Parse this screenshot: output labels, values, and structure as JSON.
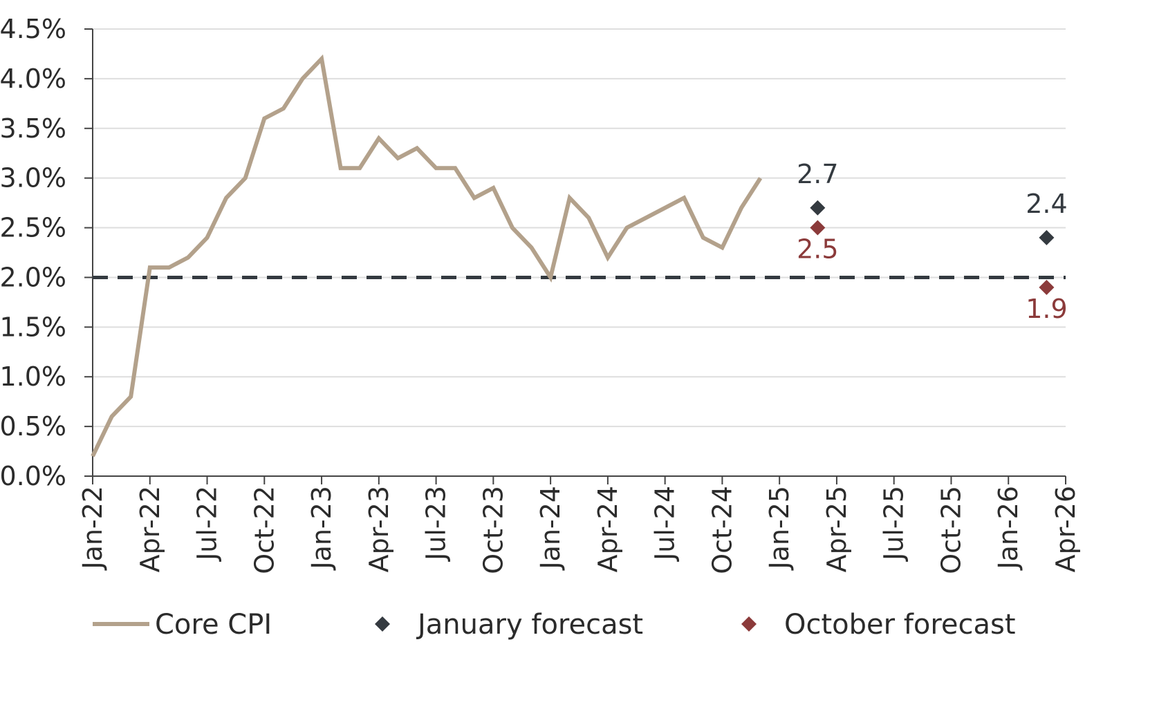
{
  "chart_data": {
    "type": "line",
    "x_axis": {
      "min": "Jan-22",
      "max": "Apr-26",
      "tick_labels": [
        "Jan-22",
        "Apr-22",
        "Jul-22",
        "Oct-22",
        "Jan-23",
        "Apr-23",
        "Jul-23",
        "Oct-23",
        "Jan-24",
        "Apr-24",
        "Jul-24",
        "Oct-24",
        "Jan-25",
        "Apr-25",
        "Jul-25",
        "Oct-25",
        "Jan-26",
        "Apr-26"
      ]
    },
    "y_axis": {
      "min": 0,
      "max": 4.5,
      "step": 0.5,
      "tick_labels": [
        "0.0%",
        "0.5%",
        "1.0%",
        "1.5%",
        "2.0%",
        "2.5%",
        "3.0%",
        "3.5%",
        "4.0%",
        "4.5%"
      ]
    },
    "grid": "horizontal",
    "legend_position": "bottom",
    "series": [
      {
        "name": "Core CPI",
        "kind": "line",
        "color": "#b3a18b",
        "x": [
          "Jan-22",
          "Feb-22",
          "Mar-22",
          "Apr-22",
          "May-22",
          "Jun-22",
          "Jul-22",
          "Aug-22",
          "Sep-22",
          "Oct-22",
          "Nov-22",
          "Dec-22",
          "Jan-23",
          "Feb-23",
          "Mar-23",
          "Apr-23",
          "May-23",
          "Jun-23",
          "Jul-23",
          "Aug-23",
          "Sep-23",
          "Oct-23",
          "Nov-23",
          "Dec-23",
          "Jan-24",
          "Feb-24",
          "Mar-24",
          "Apr-24",
          "May-24",
          "Jun-24",
          "Jul-24",
          "Aug-24",
          "Sep-24",
          "Oct-24",
          "Nov-24",
          "Dec-24"
        ],
        "values": [
          0.2,
          0.6,
          0.8,
          2.1,
          2.1,
          2.2,
          2.4,
          2.8,
          3.0,
          3.6,
          3.7,
          4.0,
          4.2,
          3.1,
          3.1,
          3.4,
          3.2,
          3.3,
          3.1,
          3.1,
          2.8,
          2.9,
          2.5,
          2.3,
          2.0,
          2.8,
          2.6,
          2.2,
          2.5,
          2.6,
          2.7,
          2.8,
          2.4,
          2.3,
          2.7,
          3.0
        ]
      },
      {
        "name": "January forecast",
        "kind": "marker",
        "color": "#343a40",
        "x": [
          "Mar-25",
          "Mar-26"
        ],
        "values": [
          2.7,
          2.4
        ],
        "labels": [
          "2.7",
          "2.4"
        ]
      },
      {
        "name": "October forecast",
        "kind": "marker",
        "color": "#8b3a3a",
        "x": [
          "Mar-25",
          "Mar-26"
        ],
        "values": [
          2.5,
          1.9
        ],
        "labels": [
          "2.5",
          "1.9"
        ]
      }
    ],
    "reference_line": {
      "value": 2.0,
      "style": "dashed",
      "color": "#343a40"
    }
  }
}
